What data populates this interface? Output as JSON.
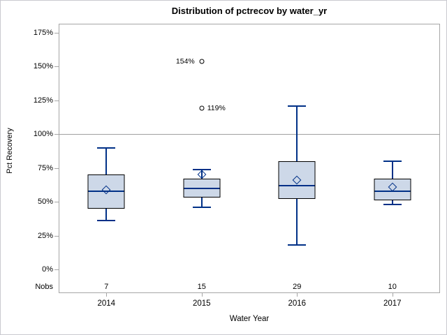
{
  "title": "Distribution of pctrecov by water_yr",
  "y_axis": {
    "title": "Pct Recovery",
    "ticks": [
      "175%",
      "150%",
      "125%",
      "100%",
      "75%",
      "50%",
      "25%",
      "0%"
    ],
    "tick_values": [
      175,
      150,
      125,
      100,
      75,
      50,
      25,
      0
    ]
  },
  "x_axis": {
    "title": "Water Year",
    "nobs_label": "Nobs",
    "categories": [
      "2014",
      "2015",
      "2016",
      "2017"
    ]
  },
  "chart_data": {
    "type": "boxplot",
    "title": "Distribution of pctrecov by water_yr",
    "xlabel": "Water Year",
    "ylabel": "Pct Recovery",
    "ylim": [
      0,
      175
    ],
    "y_unit": "percent",
    "reference_line": 100,
    "grid": false,
    "categories": [
      "2014",
      "2015",
      "2016",
      "2017"
    ],
    "nobs": [
      7,
      15,
      29,
      10
    ],
    "series": [
      {
        "category": "2014",
        "n": 7,
        "whisker_low": 36,
        "q1": 45,
        "median": 58,
        "q3": 70,
        "whisker_high": 90,
        "mean": 59,
        "outliers": []
      },
      {
        "category": "2015",
        "n": 15,
        "whisker_low": 46,
        "q1": 53,
        "median": 60,
        "q3": 67,
        "whisker_high": 74,
        "mean": 70,
        "outliers": [
          {
            "value": 154,
            "label": "154%",
            "label_side": "left"
          },
          {
            "value": 119,
            "label": "119%",
            "label_side": "right"
          }
        ]
      },
      {
        "category": "2016",
        "n": 29,
        "whisker_low": 18,
        "q1": 52,
        "median": 62,
        "q3": 80,
        "whisker_high": 121,
        "mean": 66,
        "outliers": []
      },
      {
        "category": "2017",
        "n": 10,
        "whisker_low": 48,
        "q1": 51,
        "median": 58,
        "q3": 67,
        "whisker_high": 80,
        "mean": 61,
        "outliers": []
      }
    ]
  },
  "colors": {
    "box_fill": "#cdd8e8",
    "box_border": "#000000",
    "whisker": "#003087",
    "median": "#003087",
    "mean_marker": "#003087",
    "outlier": "#000000",
    "reference_line": "#a0a0a0",
    "frame": "#a6a6a6",
    "text": "#000000",
    "background": "#ffffff",
    "figure_border": "#c9c9cf"
  }
}
